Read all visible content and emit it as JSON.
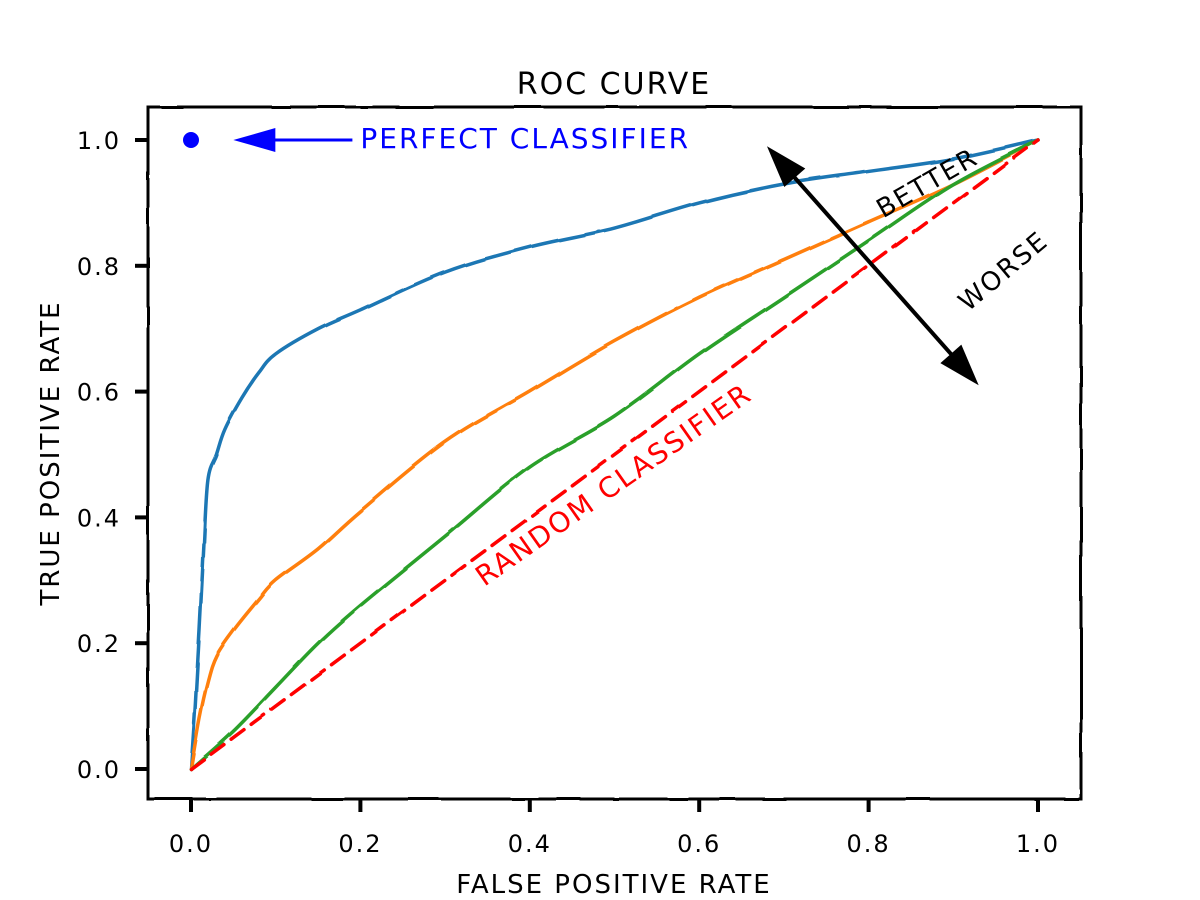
{
  "chart_data": {
    "type": "line",
    "title": "ROC CURVE",
    "xlabel": "FALSE POSITIVE RATE",
    "ylabel": "TRUE POSITIVE RATE",
    "xlim": [
      -0.05,
      1.05
    ],
    "ylim": [
      -0.05,
      1.05
    ],
    "xticks": [
      0.0,
      0.2,
      0.4,
      0.6,
      0.8,
      1.0
    ],
    "yticks": [
      0.0,
      0.2,
      0.4,
      0.6,
      0.8,
      1.0
    ],
    "xtick_labels": [
      "0.0",
      "0.2",
      "0.4",
      "0.6",
      "0.8",
      "1.0"
    ],
    "ytick_labels": [
      "0.0",
      "0.2",
      "0.4",
      "0.6",
      "0.8",
      "1.0"
    ],
    "grid": false,
    "series": [
      {
        "color": "#1f77b4",
        "style": "solid",
        "x": [
          0.0,
          0.005,
          0.01,
          0.015,
          0.02,
          0.03,
          0.04,
          0.06,
          0.08,
          0.1,
          0.15,
          0.2,
          0.3,
          0.4,
          0.5,
          0.6,
          0.7,
          0.8,
          0.9,
          1.0
        ],
        "y": [
          0.0,
          0.1,
          0.22,
          0.35,
          0.46,
          0.5,
          0.54,
          0.59,
          0.63,
          0.66,
          0.7,
          0.73,
          0.79,
          0.83,
          0.86,
          0.9,
          0.93,
          0.95,
          0.97,
          1.0
        ]
      },
      {
        "color": "#ff7f0e",
        "style": "solid",
        "x": [
          0.0,
          0.01,
          0.02,
          0.03,
          0.05,
          0.08,
          0.1,
          0.15,
          0.2,
          0.3,
          0.4,
          0.5,
          0.6,
          0.7,
          0.8,
          0.9,
          1.0
        ],
        "y": [
          0.0,
          0.08,
          0.14,
          0.18,
          0.22,
          0.27,
          0.3,
          0.35,
          0.41,
          0.52,
          0.6,
          0.68,
          0.75,
          0.81,
          0.87,
          0.93,
          1.0
        ]
      },
      {
        "color": "#2ca02c",
        "style": "solid",
        "x": [
          0.0,
          0.05,
          0.1,
          0.15,
          0.2,
          0.3,
          0.4,
          0.5,
          0.6,
          0.7,
          0.8,
          0.9,
          1.0
        ],
        "y": [
          0.0,
          0.06,
          0.13,
          0.2,
          0.26,
          0.37,
          0.48,
          0.56,
          0.66,
          0.75,
          0.84,
          0.93,
          1.0
        ]
      },
      {
        "color": "#ff0000",
        "style": "dashed",
        "x": [
          0.0,
          1.0
        ],
        "y": [
          0.0,
          1.0
        ]
      }
    ],
    "point": {
      "x": 0.0,
      "y": 1.0,
      "color": "#0000ff"
    },
    "annotations": {
      "perfect": {
        "text": "PERFECT CLASSIFIER",
        "color": "#0000ff",
        "x": 0.2,
        "y": 1.0,
        "arrow_to": [
          0.05,
          1.0
        ]
      },
      "random": {
        "text": "RANDOM CLASSIFIER",
        "color": "#ff0000",
        "x": 0.5,
        "y": 0.45,
        "rotation": -35
      },
      "better": {
        "text": "BETTER",
        "color": "#000000",
        "x": 0.87,
        "y": 0.93,
        "rotation": -30
      },
      "worse": {
        "text": "WORSE",
        "color": "#000000",
        "x": 0.96,
        "y": 0.79,
        "rotation": -40
      },
      "arrow": {
        "from": [
          0.68,
          0.99
        ],
        "to": [
          0.93,
          0.61
        ],
        "color": "#000000",
        "double": true
      }
    }
  }
}
